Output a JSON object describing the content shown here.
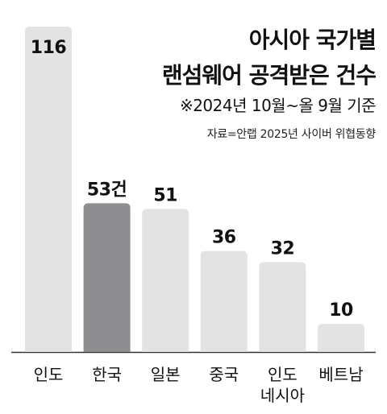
{
  "title_lines": [
    "아시아 국가별",
    "랜섬웨어 공격받은 건수"
  ],
  "subtitle": "※2024년 10월~올 9월 기준",
  "source": "자료=안랩 2025년 사이버 위협동향",
  "colors": {
    "bar": "#e3e3e3",
    "highlight": "#8e8e90",
    "axis": "#333333",
    "text": "#111111"
  },
  "chart_data": {
    "type": "bar",
    "categories": [
      [
        "인도"
      ],
      [
        "한국"
      ],
      [
        "일본"
      ],
      [
        "중국"
      ],
      [
        "인도",
        "네시아"
      ],
      [
        "베트남"
      ]
    ],
    "values": [
      116,
      53,
      51,
      36,
      32,
      10
    ],
    "value_labels": [
      "116",
      "53건",
      "51",
      "36",
      "32",
      "10"
    ],
    "highlight_index": 1,
    "ylim": [
      0,
      116
    ],
    "grid": false
  }
}
